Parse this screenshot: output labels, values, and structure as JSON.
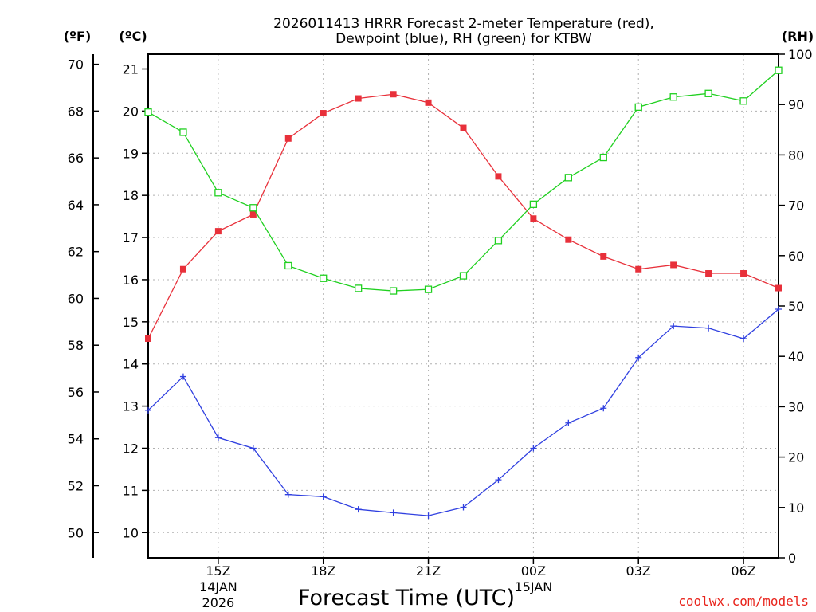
{
  "chart_data": {
    "type": "line",
    "title_line1": "2026011413 HRRR Forecast 2-meter Temperature (red),",
    "title_line2": "Dewpoint (blue), RH (green) for KTBW",
    "xlabel": "Forecast Time (UTC)",
    "credit": "coolwx.com/models",
    "units": {
      "fahrenheit": "(ºF)",
      "celsius": "(ºC)",
      "rh": "(RH)"
    },
    "hours": [
      0,
      1,
      2,
      3,
      4,
      5,
      6,
      7,
      8,
      9,
      10,
      11,
      12,
      13,
      14,
      15,
      16,
      17,
      18
    ],
    "x_ticks": [
      {
        "hour": 2,
        "label": "15Z",
        "sub1": "14JAN",
        "sub2": "2026"
      },
      {
        "hour": 5,
        "label": "18Z",
        "sub1": "",
        "sub2": ""
      },
      {
        "hour": 8,
        "label": "21Z",
        "sub1": "",
        "sub2": ""
      },
      {
        "hour": 11,
        "label": "00Z",
        "sub1": "15JAN",
        "sub2": ""
      },
      {
        "hour": 14,
        "label": "03Z",
        "sub1": "",
        "sub2": ""
      },
      {
        "hour": 17,
        "label": "06Z",
        "sub1": "",
        "sub2": ""
      }
    ],
    "celsius_range": [
      9.4,
      21.35
    ],
    "celsius_ticks": [
      "10",
      "11",
      "12",
      "13",
      "14",
      "15",
      "16",
      "17",
      "18",
      "19",
      "20",
      "21"
    ],
    "fahrenheit_ticks": [
      "50",
      "52",
      "54",
      "56",
      "58",
      "60",
      "62",
      "64",
      "66",
      "68",
      "70"
    ],
    "rh_range": [
      0,
      100
    ],
    "rh_ticks": [
      "0",
      "10",
      "20",
      "30",
      "40",
      "50",
      "60",
      "70",
      "80",
      "90",
      "100"
    ],
    "series": [
      {
        "name": "Temperature",
        "color": "#e8303a",
        "marker": "filled-square",
        "values": [
          14.6,
          16.25,
          17.15,
          17.55,
          19.35,
          19.95,
          20.3,
          20.4,
          20.2,
          19.6,
          18.45,
          17.45,
          16.95,
          16.55,
          16.25,
          16.35,
          16.15,
          16.15,
          15.8
        ]
      },
      {
        "name": "Dewpoint",
        "color": "#3040e0",
        "marker": "plus",
        "values": [
          12.9,
          13.7,
          12.25,
          12.0,
          10.9,
          10.85,
          10.55,
          10.47,
          10.4,
          10.6,
          11.25,
          12.0,
          12.6,
          12.95,
          14.15,
          14.9,
          14.85,
          14.6,
          15.3
        ]
      },
      {
        "name": "RH",
        "color": "#20d020",
        "marker": "open-square",
        "values": [
          88.5,
          84.5,
          72.5,
          69.5,
          58,
          55.5,
          53.5,
          53,
          53.3,
          56,
          63,
          70.2,
          75.5,
          79.5,
          89.5,
          91.5,
          92.2,
          90.7,
          96.8
        ]
      }
    ]
  }
}
